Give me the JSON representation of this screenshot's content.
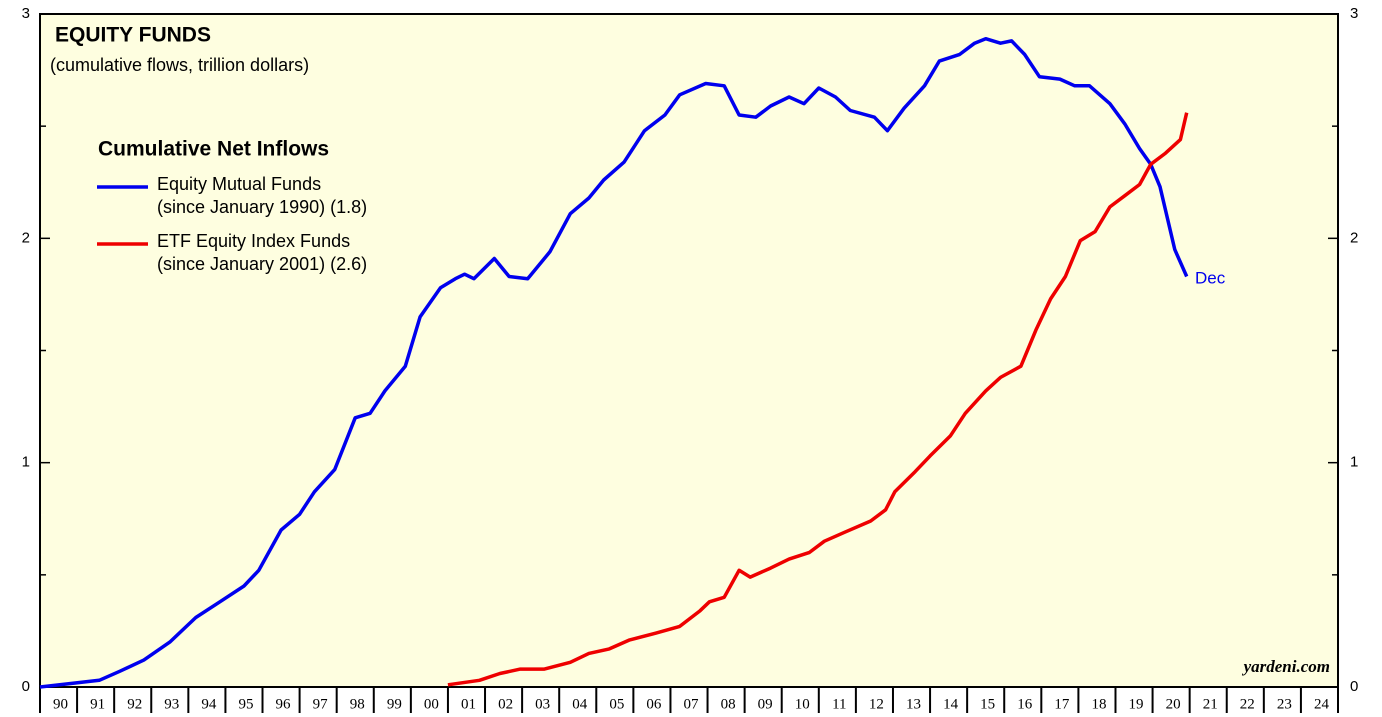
{
  "chart_data": {
    "type": "line",
    "title": "EQUITY FUNDS",
    "subtitle": "(cumulative flows, trillion dollars)",
    "legend_title": "Cumulative Net Inflows",
    "xlim": [
      1990,
      2025
    ],
    "xticks": [
      {
        "value": 1990,
        "label": "90"
      },
      {
        "value": 1991,
        "label": "91"
      },
      {
        "value": 1992,
        "label": "92"
      },
      {
        "value": 1993,
        "label": "93"
      },
      {
        "value": 1994,
        "label": "94"
      },
      {
        "value": 1995,
        "label": "95"
      },
      {
        "value": 1996,
        "label": "96"
      },
      {
        "value": 1997,
        "label": "97"
      },
      {
        "value": 1998,
        "label": "98"
      },
      {
        "value": 1999,
        "label": "99"
      },
      {
        "value": 2000,
        "label": "00"
      },
      {
        "value": 2001,
        "label": "01"
      },
      {
        "value": 2002,
        "label": "02"
      },
      {
        "value": 2003,
        "label": "03"
      },
      {
        "value": 2004,
        "label": "04"
      },
      {
        "value": 2005,
        "label": "05"
      },
      {
        "value": 2006,
        "label": "06"
      },
      {
        "value": 2007,
        "label": "07"
      },
      {
        "value": 2008,
        "label": "08"
      },
      {
        "value": 2009,
        "label": "09"
      },
      {
        "value": 2010,
        "label": "10"
      },
      {
        "value": 2011,
        "label": "11"
      },
      {
        "value": 2012,
        "label": "12"
      },
      {
        "value": 2013,
        "label": "13"
      },
      {
        "value": 2014,
        "label": "14"
      },
      {
        "value": 2015,
        "label": "15"
      },
      {
        "value": 2016,
        "label": "16"
      },
      {
        "value": 2017,
        "label": "17"
      },
      {
        "value": 2018,
        "label": "18"
      },
      {
        "value": 2019,
        "label": "19"
      },
      {
        "value": 2020,
        "label": "20"
      },
      {
        "value": 2021,
        "label": "21"
      },
      {
        "value": 2022,
        "label": "22"
      },
      {
        "value": 2023,
        "label": "23"
      },
      {
        "value": 2024,
        "label": "24"
      }
    ],
    "ylim": [
      0,
      3
    ],
    "yticks": [
      0,
      1,
      2,
      3
    ],
    "yminor_ticks": [
      0.5,
      1.5,
      2.5
    ],
    "series": [
      {
        "name": [
          "Equity Mutual Funds",
          "(since January 1990) (1.8)"
        ],
        "color": "#0000ee",
        "x": [
          1990.0,
          1991.6,
          1992.15,
          1992.8,
          1993.5,
          1994.2,
          1994.85,
          1995.5,
          1995.9,
          1996.5,
          1997.0,
          1997.4,
          1997.95,
          1998.5,
          1998.9,
          1999.3,
          1999.85,
          2000.25,
          2000.8,
          2001.2,
          2001.45,
          2001.7,
          2002.25,
          2002.65,
          2003.15,
          2003.75,
          2004.3,
          2004.8,
          2005.2,
          2005.75,
          2006.3,
          2006.85,
          2007.25,
          2007.95,
          2008.45,
          2008.85,
          2009.3,
          2009.7,
          2010.2,
          2010.6,
          2011.0,
          2011.45,
          2011.85,
          2012.5,
          2012.85,
          2013.3,
          2013.85,
          2014.25,
          2014.8,
          2015.2,
          2015.5,
          2015.9,
          2016.2,
          2016.55,
          2016.95,
          2017.5,
          2017.9,
          2018.3,
          2018.85,
          2019.25,
          2019.65,
          2019.95,
          2020.2,
          2020.6,
          2020.92
        ],
        "values": [
          0,
          0.03,
          0.07,
          0.12,
          0.2,
          0.31,
          0.38,
          0.45,
          0.52,
          0.7,
          0.77,
          0.87,
          0.97,
          1.2,
          1.22,
          1.32,
          1.43,
          1.65,
          1.78,
          1.82,
          1.84,
          1.82,
          1.91,
          1.83,
          1.82,
          1.94,
          2.11,
          2.18,
          2.26,
          2.34,
          2.48,
          2.55,
          2.64,
          2.69,
          2.68,
          2.55,
          2.54,
          2.59,
          2.63,
          2.6,
          2.67,
          2.63,
          2.57,
          2.54,
          2.48,
          2.58,
          2.68,
          2.79,
          2.82,
          2.87,
          2.89,
          2.87,
          2.88,
          2.82,
          2.72,
          2.71,
          2.68,
          2.68,
          2.6,
          2.51,
          2.4,
          2.33,
          2.23,
          1.95,
          1.83
        ]
      },
      {
        "name": [
          "ETF Equity Index Funds",
          "(since January 2001) (2.6)"
        ],
        "color": "#ee0000",
        "x": [
          2001.0,
          2001.85,
          2002.4,
          2002.95,
          2003.6,
          2004.3,
          2004.8,
          2005.35,
          2005.9,
          2006.6,
          2007.25,
          2007.8,
          2008.05,
          2008.45,
          2008.85,
          2009.15,
          2009.7,
          2010.2,
          2010.75,
          2011.15,
          2011.7,
          2012.4,
          2012.8,
          2013.05,
          2013.6,
          2014.0,
          2014.55,
          2014.95,
          2015.5,
          2015.9,
          2016.45,
          2016.85,
          2017.25,
          2017.65,
          2018.05,
          2018.45,
          2018.85,
          2019.25,
          2019.65,
          2019.95,
          2020.35,
          2020.75,
          2020.92
        ],
        "values": [
          0.01,
          0.03,
          0.06,
          0.08,
          0.08,
          0.11,
          0.15,
          0.17,
          0.21,
          0.24,
          0.27,
          0.34,
          0.38,
          0.4,
          0.52,
          0.49,
          0.53,
          0.57,
          0.6,
          0.65,
          0.69,
          0.74,
          0.79,
          0.87,
          0.96,
          1.03,
          1.12,
          1.22,
          1.32,
          1.38,
          1.43,
          1.59,
          1.73,
          1.83,
          1.99,
          2.03,
          2.14,
          2.19,
          2.24,
          2.33,
          2.38,
          2.44,
          2.56
        ]
      }
    ],
    "annotations": [
      {
        "text": "Dec",
        "color": "#0000ee"
      },
      {
        "text": "yardeni.com"
      }
    ]
  }
}
